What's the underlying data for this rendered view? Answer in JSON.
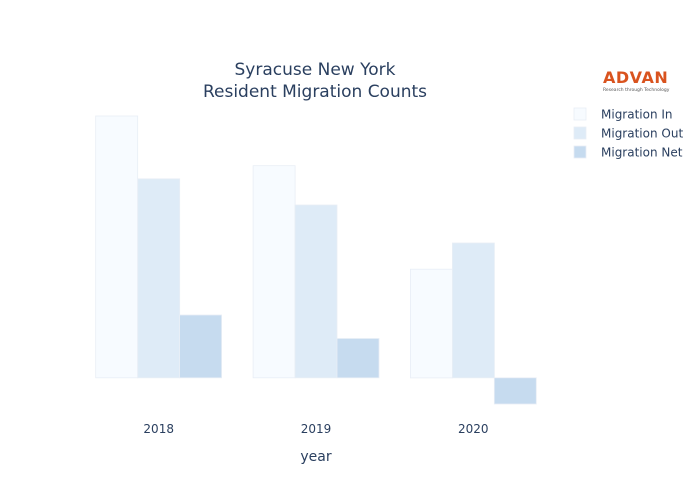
{
  "logo": {
    "brand": "ADVAN",
    "tagline": "Research through Technology"
  },
  "chart_data": {
    "type": "bar",
    "title": [
      "Syracuse New York",
      "Resident Migration Counts"
    ],
    "xlabel": "year",
    "ylabel": "",
    "categories": [
      "2018",
      "2019",
      "2020"
    ],
    "series": [
      {
        "name": "Migration In",
        "values": [
          1000,
          810,
          415
        ],
        "color": "#f7fbff"
      },
      {
        "name": "Migration Out",
        "values": [
          760,
          660,
          515
        ],
        "color": "#deebf7"
      },
      {
        "name": "Migration Net",
        "values": [
          240,
          150,
          -100
        ],
        "color": "#c6dbef"
      }
    ],
    "ylim": [
      -100,
      1000
    ],
    "grid": false,
    "legend": "top-right"
  }
}
